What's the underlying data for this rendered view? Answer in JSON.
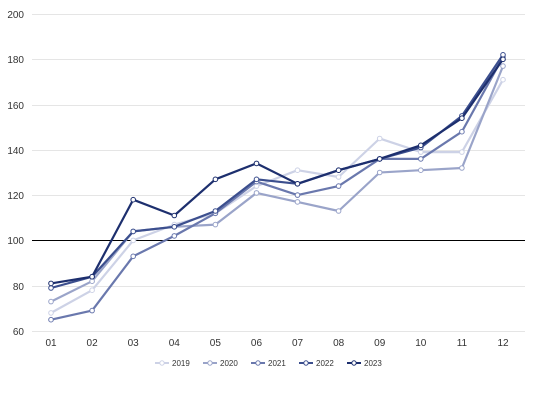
{
  "chart_data": {
    "type": "line",
    "categories": [
      "01",
      "02",
      "03",
      "04",
      "05",
      "06",
      "07",
      "08",
      "09",
      "10",
      "11",
      "12"
    ],
    "ylim": [
      60,
      200
    ],
    "yticks": [
      60,
      80,
      100,
      120,
      140,
      160,
      180,
      200
    ],
    "reference_line": 100,
    "grid": true,
    "legend_position": "bottom",
    "series": [
      {
        "name": "2019",
        "color": "#cdd2e6",
        "values": [
          68,
          78,
          100,
          107,
          112,
          124,
          131,
          128,
          145,
          139,
          139,
          171
        ]
      },
      {
        "name": "2020",
        "color": "#9aa4c9",
        "values": [
          73,
          82,
          104,
          106,
          107,
          121,
          117,
          113,
          130,
          131,
          132,
          177
        ]
      },
      {
        "name": "2021",
        "color": "#6a78ad",
        "values": [
          65,
          69,
          93,
          102,
          112,
          126,
          120,
          124,
          136,
          136,
          148,
          181
        ]
      },
      {
        "name": "2022",
        "color": "#3c4f8e",
        "values": [
          79,
          84,
          104,
          106,
          113,
          127,
          125,
          131,
          136,
          141,
          155,
          182
        ]
      },
      {
        "name": "2023",
        "color": "#1d2f6e",
        "values": [
          81,
          84,
          118,
          111,
          127,
          134,
          125,
          131,
          136,
          142,
          154,
          180
        ]
      }
    ]
  }
}
